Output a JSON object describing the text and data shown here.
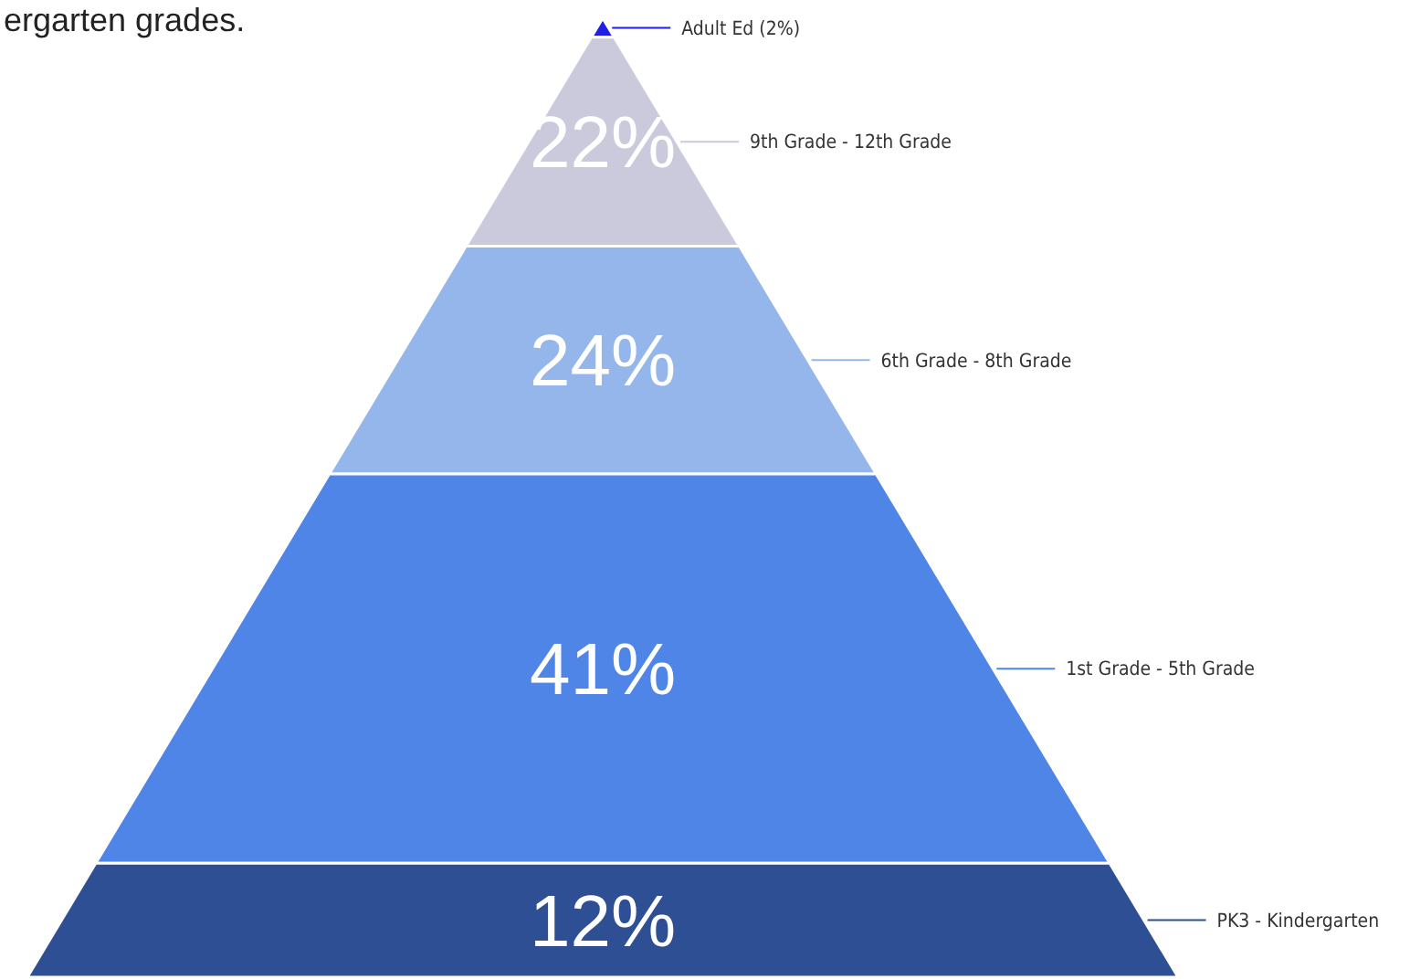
{
  "chart_data": {
    "type": "other",
    "categories": [
      "Adult Ed",
      "9th Grade - 12th Grade",
      "6th Grade - 8th Grade",
      "1st Grade - 5th Grade",
      "PK3 - Kindergarten"
    ],
    "values": [
      2,
      22,
      24,
      41,
      12
    ],
    "value_labels": [
      "(2%)",
      "22%",
      "24%",
      "41%",
      "12%"
    ],
    "colors": [
      "#1f1fe6",
      "#cbcadd",
      "#94b6ea",
      "#5085e8",
      "#2e4f94"
    ],
    "annotations": [
      "ergarten grades."
    ]
  }
}
